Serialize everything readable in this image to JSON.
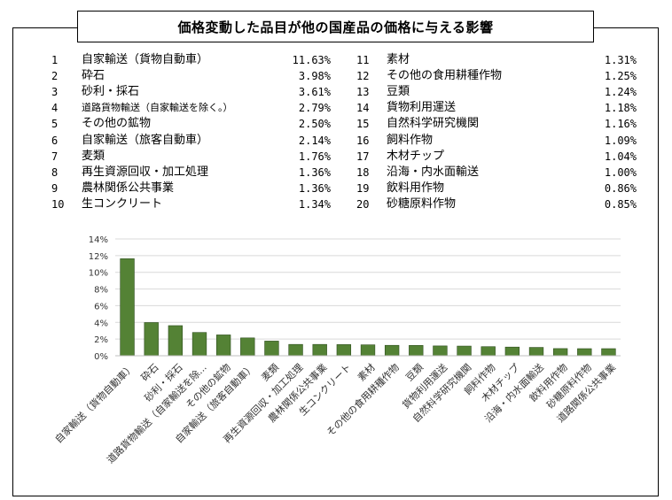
{
  "title": "価格変動した品目が他の国産品の価格に与える影響",
  "ranking_left": [
    {
      "no": "1",
      "name": "自家輸送（貨物自動車）",
      "value": "11.63%"
    },
    {
      "no": "2",
      "name": "砕石",
      "value": "3.98%"
    },
    {
      "no": "3",
      "name": "砂利・採石",
      "value": "3.61%"
    },
    {
      "no": "4",
      "name": "道路貨物輸送（自家輸送を除く。）",
      "value": "2.79%",
      "small": true
    },
    {
      "no": "5",
      "name": "その他の鉱物",
      "value": "2.50%"
    },
    {
      "no": "6",
      "name": "自家輸送（旅客自動車）",
      "value": "2.14%"
    },
    {
      "no": "7",
      "name": "麦類",
      "value": "1.76%"
    },
    {
      "no": "8",
      "name": "再生資源回収・加工処理",
      "value": "1.36%"
    },
    {
      "no": "9",
      "name": "農林関係公共事業",
      "value": "1.36%"
    },
    {
      "no": "10",
      "name": "生コンクリート",
      "value": "1.34%"
    }
  ],
  "ranking_right": [
    {
      "no": "11",
      "name": "素材",
      "value": "1.31%"
    },
    {
      "no": "12",
      "name": "その他の食用耕種作物",
      "value": "1.25%"
    },
    {
      "no": "13",
      "name": "豆類",
      "value": "1.24%"
    },
    {
      "no": "14",
      "name": "貨物利用運送",
      "value": "1.18%"
    },
    {
      "no": "15",
      "name": "自然科学研究機関",
      "value": "1.16%"
    },
    {
      "no": "16",
      "name": "飼料作物",
      "value": "1.09%"
    },
    {
      "no": "17",
      "name": "木材チップ",
      "value": "1.04%"
    },
    {
      "no": "18",
      "name": "沿海・内水面輸送",
      "value": "1.00%"
    },
    {
      "no": "19",
      "name": "飲料用作物",
      "value": "0.86%"
    },
    {
      "no": "20",
      "name": "砂糖原料作物",
      "value": "0.85%"
    }
  ],
  "chart_data": {
    "type": "bar",
    "categories": [
      "自家輸送（貨物自動車）",
      "砕石",
      "砂利・採石",
      "道路貨物輸送（自家輸送を除...",
      "その他の鉱物",
      "自家輸送（旅客自動車）",
      "麦類",
      "再生資源回収・加工処理",
      "農林関係公共事業",
      "生コンクリート",
      "素材",
      "その他の食用耕種作物",
      "豆類",
      "貨物利用運送",
      "自然科学研究機関",
      "飼料作物",
      "木材チップ",
      "沿海・内水面輸送",
      "飲料用作物",
      "砂糖原料作物",
      "道路関係公共事業"
    ],
    "values": [
      11.63,
      3.98,
      3.61,
      2.79,
      2.5,
      2.14,
      1.76,
      1.36,
      1.36,
      1.34,
      1.31,
      1.25,
      1.24,
      1.18,
      1.16,
      1.09,
      1.04,
      1.0,
      0.86,
      0.85,
      0.85
    ],
    "ylim": [
      0,
      14
    ],
    "yticks": [
      "0%",
      "2%",
      "4%",
      "6%",
      "8%",
      "10%",
      "12%",
      "14%"
    ],
    "grid": true,
    "bar_color": "#548235"
  }
}
